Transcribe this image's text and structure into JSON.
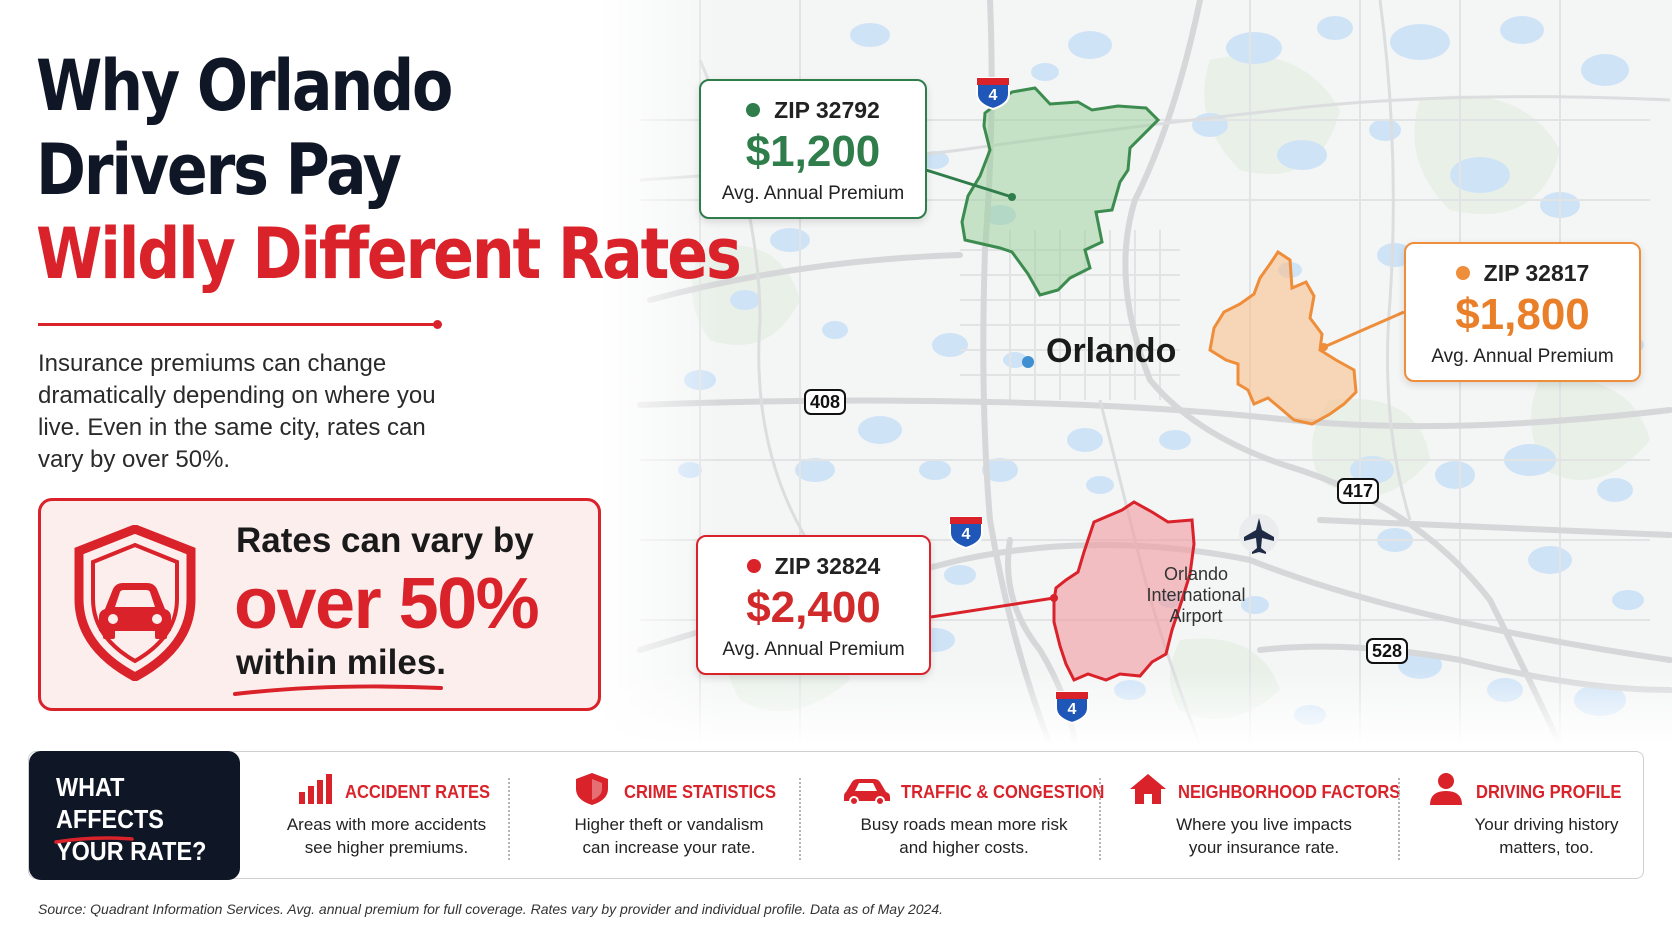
{
  "title": {
    "line1": "Why Orlando",
    "line2": "Drivers Pay",
    "line3": "Wildly Different Rates"
  },
  "intro": "Insurance premiums can change dramatically depending on where you live. Even in the same city, rates can vary by over 50%.",
  "callout": {
    "line1": "Rates can vary by",
    "big": "over 50%",
    "line3": "within miles.",
    "icon": "shield-car-icon"
  },
  "map": {
    "city": "Orlando",
    "airport": "Orlando\nInternational\nAirport",
    "routes": {
      "r408": "408",
      "r417": "417",
      "r528": "528",
      "i4": "4"
    },
    "zips": [
      {
        "zip": "ZIP 32792",
        "price": "$1,200",
        "label": "Avg. Annual Premium",
        "color": "#2f7d4a"
      },
      {
        "zip": "ZIP 32817",
        "price": "$1,800",
        "label": "Avg. Annual Premium",
        "color": "#ee8d3a"
      },
      {
        "zip": "ZIP 32824",
        "price": "$2,400",
        "label": "Avg. Annual Premium",
        "color": "#d9222a"
      }
    ]
  },
  "factors": {
    "heading": "WHAT AFFECTS\nYOUR RATE?",
    "items": [
      {
        "title": "ACCIDENT RATES",
        "desc": "Areas with more accidents\nsee higher premiums.",
        "icon": "bar-chart-icon"
      },
      {
        "title": "CRIME STATISTICS",
        "desc": "Higher theft or vandalism\ncan increase your rate.",
        "icon": "shield-icon"
      },
      {
        "title": "TRAFFIC & CONGESTION",
        "desc": "Busy roads mean more risk\nand higher costs.",
        "icon": "car-icon"
      },
      {
        "title": "NEIGHBORHOOD FACTORS",
        "desc": "Where you live impacts\nyour insurance rate.",
        "icon": "house-icon"
      },
      {
        "title": "DRIVING PROFILE",
        "desc": "Your driving history\nmatters, too.",
        "icon": "person-icon"
      }
    ]
  },
  "source": "Source: Quadrant Information Services. Avg. annual premium for full coverage. Rates vary by provider and individual profile. Data as of May 2024.",
  "colors": {
    "accent": "#d9222a",
    "navy": "#0f1626",
    "green": "#2f7d4a",
    "orange": "#ee8d3a"
  }
}
